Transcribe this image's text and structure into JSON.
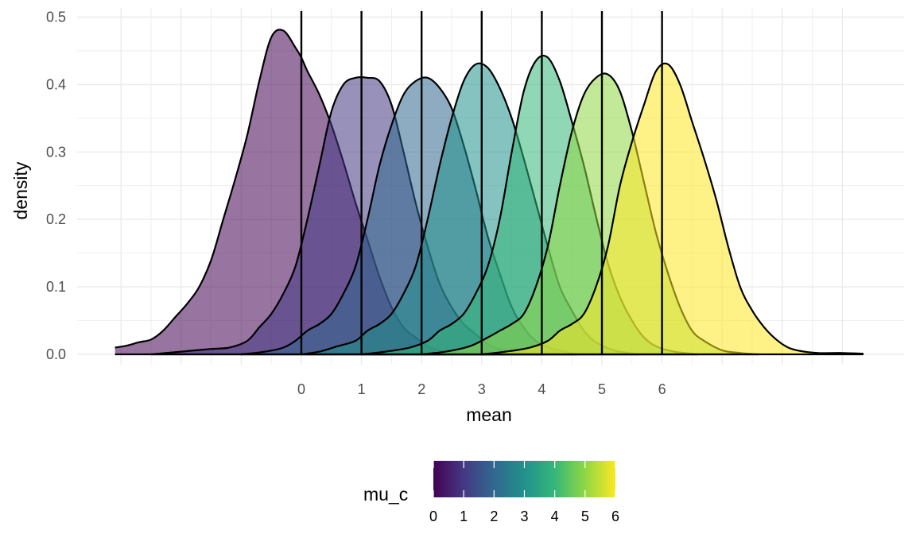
{
  "chart_data": {
    "type": "area",
    "xlabel": "mean",
    "ylabel": "density",
    "xlim": [
      -3.16,
      9.4
    ],
    "ylim": [
      0,
      0.5
    ],
    "x_ticks": [
      0,
      1,
      2,
      3,
      4,
      5,
      6
    ],
    "x_tick_labels": [
      "0",
      "1",
      "2",
      "3",
      "4",
      "5",
      "6"
    ],
    "y_ticks": [
      0.0,
      0.1,
      0.2,
      0.3,
      0.4,
      0.5
    ],
    "y_tick_labels": [
      "0.0",
      "0.1",
      "0.2",
      "0.3",
      "0.4",
      "0.5"
    ],
    "grid": true,
    "vlines": [
      0,
      1,
      2,
      3,
      4,
      5,
      6
    ],
    "legend": {
      "title": "mu_c",
      "placement": "bottom",
      "type": "colorbar",
      "ticks": [
        "0",
        "1",
        "2",
        "3",
        "4",
        "5",
        "6"
      ],
      "colors": [
        "#440154",
        "#443983",
        "#31688e",
        "#21918c",
        "#35b779",
        "#90d743",
        "#fde725"
      ]
    },
    "fill_opacity": 0.55,
    "series": [
      {
        "mu_c": 0,
        "color": "#440154",
        "x": [
          -3.1,
          -2.9,
          -2.7,
          -2.5,
          -2.3,
          -2.1,
          -1.9,
          -1.7,
          -1.5,
          -1.3,
          -1.1,
          -0.9,
          -0.7,
          -0.5,
          -0.3,
          -0.1,
          0.0,
          0.1,
          0.3,
          0.5,
          0.7,
          0.9,
          1.1,
          1.3,
          1.5,
          1.7,
          1.9,
          2.1,
          2.3,
          2.5,
          2.8,
          3.2
        ],
        "y": [
          0.01,
          0.013,
          0.018,
          0.022,
          0.035,
          0.055,
          0.075,
          0.1,
          0.14,
          0.2,
          0.26,
          0.325,
          0.405,
          0.47,
          0.48,
          0.455,
          0.44,
          0.42,
          0.385,
          0.34,
          0.285,
          0.225,
          0.17,
          0.115,
          0.07,
          0.04,
          0.025,
          0.012,
          0.006,
          0.003,
          0.001,
          0.0
        ]
      },
      {
        "mu_c": 1,
        "color": "#443983",
        "x": [
          -2.5,
          -2.0,
          -1.5,
          -1.2,
          -0.9,
          -0.7,
          -0.5,
          -0.3,
          -0.1,
          0.1,
          0.3,
          0.5,
          0.7,
          0.9,
          1.1,
          1.3,
          1.5,
          1.7,
          1.9,
          2.1,
          2.3,
          2.5,
          2.7,
          2.9,
          3.1,
          3.3,
          3.6,
          4.0
        ],
        "y": [
          0.0,
          0.004,
          0.008,
          0.01,
          0.02,
          0.04,
          0.06,
          0.09,
          0.13,
          0.2,
          0.28,
          0.36,
          0.4,
          0.41,
          0.41,
          0.405,
          0.37,
          0.3,
          0.225,
          0.16,
          0.105,
          0.07,
          0.045,
          0.03,
          0.015,
          0.008,
          0.003,
          0.0
        ]
      },
      {
        "mu_c": 2,
        "color": "#31688e",
        "x": [
          -1.0,
          -0.6,
          -0.3,
          -0.1,
          0.1,
          0.3,
          0.5,
          0.7,
          0.9,
          1.1,
          1.3,
          1.5,
          1.7,
          1.9,
          2.1,
          2.3,
          2.5,
          2.7,
          2.9,
          3.1,
          3.3,
          3.5,
          3.7,
          3.9,
          4.2,
          4.6
        ],
        "y": [
          0.0,
          0.004,
          0.01,
          0.02,
          0.035,
          0.045,
          0.06,
          0.09,
          0.13,
          0.2,
          0.28,
          0.34,
          0.385,
          0.405,
          0.41,
          0.395,
          0.365,
          0.31,
          0.245,
          0.175,
          0.12,
          0.07,
          0.04,
          0.02,
          0.008,
          0.0
        ]
      },
      {
        "mu_c": 3,
        "color": "#21918c",
        "x": [
          0.0,
          0.3,
          0.6,
          0.9,
          1.1,
          1.3,
          1.5,
          1.7,
          1.9,
          2.1,
          2.3,
          2.5,
          2.7,
          2.9,
          3.1,
          3.3,
          3.5,
          3.7,
          3.9,
          4.1,
          4.3,
          4.5,
          4.7,
          4.9,
          5.2,
          5.6
        ],
        "y": [
          0.0,
          0.004,
          0.012,
          0.02,
          0.035,
          0.045,
          0.06,
          0.09,
          0.13,
          0.2,
          0.28,
          0.35,
          0.405,
          0.43,
          0.425,
          0.395,
          0.35,
          0.29,
          0.225,
          0.16,
          0.1,
          0.065,
          0.035,
          0.018,
          0.006,
          0.0
        ]
      },
      {
        "mu_c": 4,
        "color": "#35b779",
        "x": [
          1.0,
          1.4,
          1.8,
          2.1,
          2.3,
          2.5,
          2.7,
          2.9,
          3.1,
          3.3,
          3.5,
          3.7,
          3.9,
          4.1,
          4.3,
          4.5,
          4.7,
          4.9,
          5.1,
          5.3,
          5.5,
          5.7,
          5.9,
          6.2,
          6.6
        ],
        "y": [
          0.0,
          0.004,
          0.01,
          0.02,
          0.035,
          0.045,
          0.06,
          0.09,
          0.13,
          0.2,
          0.3,
          0.39,
          0.435,
          0.44,
          0.405,
          0.345,
          0.28,
          0.205,
          0.135,
          0.085,
          0.05,
          0.025,
          0.012,
          0.004,
          0.0
        ]
      },
      {
        "mu_c": 5,
        "color": "#90d743",
        "x": [
          2.0,
          2.4,
          2.8,
          3.1,
          3.3,
          3.5,
          3.7,
          3.9,
          4.1,
          4.3,
          4.5,
          4.7,
          4.9,
          5.1,
          5.3,
          5.5,
          5.7,
          5.9,
          6.1,
          6.3,
          6.5,
          6.7,
          7.0,
          7.3,
          7.6
        ],
        "y": [
          0.0,
          0.004,
          0.012,
          0.025,
          0.035,
          0.045,
          0.06,
          0.1,
          0.16,
          0.25,
          0.33,
          0.385,
          0.41,
          0.415,
          0.39,
          0.33,
          0.255,
          0.18,
          0.12,
          0.07,
          0.035,
          0.02,
          0.006,
          0.002,
          0.0
        ]
      },
      {
        "mu_c": 6,
        "color": "#fde725",
        "x": [
          3.0,
          3.4,
          3.8,
          4.1,
          4.3,
          4.5,
          4.7,
          4.9,
          5.1,
          5.3,
          5.5,
          5.7,
          5.9,
          6.1,
          6.3,
          6.5,
          6.7,
          6.9,
          7.1,
          7.3,
          7.5,
          7.7,
          7.9,
          8.1,
          8.3,
          8.6,
          9.0,
          9.35
        ],
        "y": [
          0.0,
          0.004,
          0.01,
          0.02,
          0.035,
          0.045,
          0.06,
          0.1,
          0.16,
          0.25,
          0.315,
          0.37,
          0.42,
          0.43,
          0.4,
          0.345,
          0.29,
          0.23,
          0.16,
          0.1,
          0.065,
          0.04,
          0.022,
          0.01,
          0.005,
          0.002,
          0.002,
          0.001
        ]
      }
    ]
  }
}
